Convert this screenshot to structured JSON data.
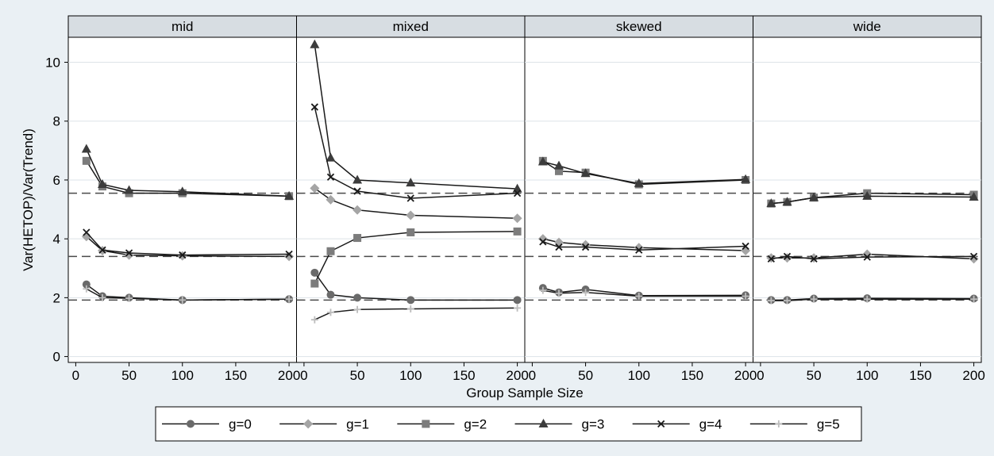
{
  "chart_data": {
    "type": "line",
    "facets": [
      "mid",
      "mixed",
      "skewed",
      "wide"
    ],
    "xlabel": "Group Sample Size",
    "ylabel": "Var(HETOP)/Var(Trend)",
    "x_ticks": [
      0,
      50,
      100,
      150,
      200
    ],
    "y_ticks": [
      0,
      2,
      4,
      6,
      8,
      10
    ],
    "xlim": [
      -7,
      207
    ],
    "ylim": [
      -0.2,
      10.85
    ],
    "x": [
      10,
      25,
      50,
      100,
      200
    ],
    "reference_lines": [
      1.92,
      3.4,
      5.55
    ],
    "legend": {
      "position": "bottom",
      "entries": [
        "g=0",
        "g=1",
        "g=2",
        "g=3",
        "g=4",
        "g=5"
      ]
    },
    "series": [
      {
        "name": "g=0",
        "marker": "circle",
        "color": "#6a6a6a",
        "panels": {
          "mid": [
            2.45,
            2.05,
            2.0,
            1.92,
            1.95
          ],
          "mixed": [
            2.85,
            2.1,
            2.0,
            1.92,
            1.92
          ],
          "skewed": [
            2.33,
            2.18,
            2.28,
            2.07,
            2.08
          ],
          "wide": [
            1.92,
            1.92,
            1.97,
            1.98,
            1.97
          ]
        }
      },
      {
        "name": "g=1",
        "marker": "diamond",
        "color": "#a5a5a5",
        "panels": {
          "mid": [
            4.08,
            3.6,
            3.45,
            3.42,
            3.4
          ],
          "mixed": [
            5.72,
            5.33,
            4.98,
            4.8,
            4.7
          ],
          "skewed": [
            4.0,
            3.88,
            3.8,
            3.7,
            3.6
          ],
          "wide": [
            3.35,
            3.35,
            3.35,
            3.48,
            3.32
          ]
        }
      },
      {
        "name": "g=2",
        "marker": "square",
        "color": "#7c7c7c",
        "panels": {
          "mid": [
            6.65,
            5.78,
            5.55,
            5.55,
            5.45
          ],
          "mixed": [
            2.48,
            3.58,
            4.03,
            4.22,
            4.25
          ],
          "skewed": [
            6.65,
            6.3,
            6.25,
            5.85,
            6.0
          ],
          "wide": [
            5.2,
            5.25,
            5.4,
            5.55,
            5.5
          ]
        }
      },
      {
        "name": "g=3",
        "marker": "triangle",
        "color": "#3c3c3c",
        "panels": {
          "mid": [
            7.05,
            5.85,
            5.65,
            5.6,
            5.45
          ],
          "mixed": [
            10.6,
            6.75,
            6.0,
            5.9,
            5.7
          ],
          "skewed": [
            6.62,
            6.48,
            6.22,
            5.88,
            6.02
          ],
          "wide": [
            5.2,
            5.25,
            5.4,
            5.45,
            5.42
          ]
        }
      },
      {
        "name": "g=4",
        "marker": "x",
        "color": "#1a1a1a",
        "panels": {
          "mid": [
            4.22,
            3.62,
            3.52,
            3.45,
            3.48
          ],
          "mixed": [
            8.48,
            6.1,
            5.62,
            5.38,
            5.55
          ],
          "skewed": [
            3.9,
            3.72,
            3.72,
            3.62,
            3.75
          ],
          "wide": [
            3.32,
            3.4,
            3.32,
            3.38,
            3.4
          ]
        }
      },
      {
        "name": "g=5",
        "marker": "plus",
        "color": "#bdbdbd",
        "panels": {
          "mid": [
            2.3,
            2.0,
            1.98,
            1.92,
            1.95
          ],
          "mixed": [
            1.25,
            1.5,
            1.6,
            1.62,
            1.65
          ],
          "skewed": [
            2.25,
            2.15,
            2.18,
            2.05,
            2.05
          ],
          "wide": [
            1.9,
            1.9,
            1.95,
            1.95,
            1.95
          ]
        }
      }
    ]
  }
}
